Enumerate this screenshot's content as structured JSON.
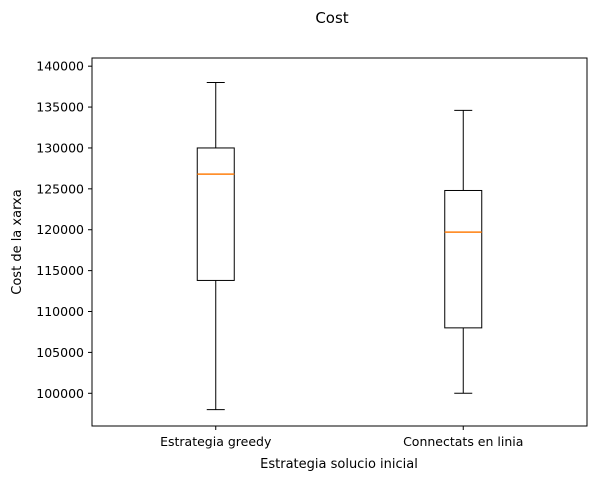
{
  "chart_data": {
    "type": "box",
    "title": "Cost",
    "xlabel": "Estrategia solucio inicial",
    "ylabel": "Cost de la xarxa",
    "ylim": [
      96000,
      141000
    ],
    "yticks": [
      100000,
      105000,
      110000,
      115000,
      120000,
      125000,
      130000,
      135000,
      140000
    ],
    "ytick_labels": [
      "100000",
      "105000",
      "110000",
      "115000",
      "120000",
      "125000",
      "130000",
      "135000",
      "140000"
    ],
    "categories": [
      "Estrategia greedy",
      "Connectats en linia"
    ],
    "boxes": [
      {
        "category": "Estrategia greedy",
        "whisker_low": 98000,
        "q1": 113800,
        "median": 126800,
        "q3": 130000,
        "whisker_high": 138000
      },
      {
        "category": "Connectats en linia",
        "whisker_low": 100000,
        "q1": 108000,
        "median": 119700,
        "q3": 124800,
        "whisker_high": 134600
      }
    ],
    "grid": false,
    "colors": {
      "box": "#000000",
      "median": "#ff7f0e"
    }
  }
}
